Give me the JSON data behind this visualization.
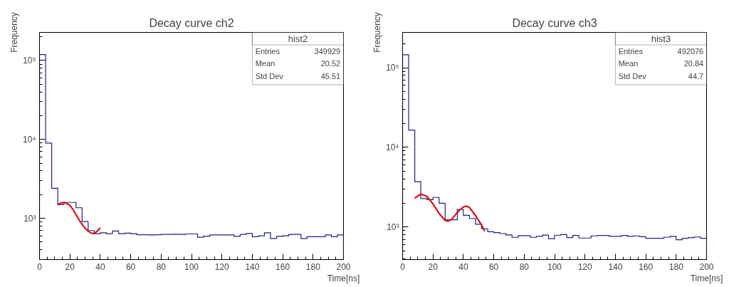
{
  "chart_data": [
    {
      "type": "histogram",
      "title": "Decay curve ch2",
      "xlabel": "Time[ns]",
      "ylabel": "Frequency",
      "bins": [
        0,
        4,
        8,
        12,
        16,
        20,
        24,
        28,
        32,
        36,
        40,
        44,
        48,
        52,
        56,
        60,
        64,
        68,
        72,
        76,
        80,
        84,
        88,
        92,
        96,
        100,
        104,
        108,
        112,
        116,
        120,
        124,
        128,
        132,
        136,
        140,
        144,
        148,
        152,
        156,
        160,
        164,
        168,
        172,
        176,
        180,
        184,
        188,
        192,
        196,
        200
      ],
      "series": [
        {
          "color": "#202080",
          "values": [
            119000,
            9000,
            2400,
            1490,
            1590,
            1590,
            1360,
            910,
            700,
            640,
            655,
            640,
            690,
            640,
            650,
            640,
            620,
            620,
            615,
            620,
            625,
            625,
            630,
            625,
            634,
            634,
            575,
            595,
            617,
            617,
            617,
            617,
            590,
            626,
            642,
            584,
            600,
            656,
            555,
            592,
            600,
            625,
            625,
            555,
            584,
            584,
            584,
            617,
            584,
            617
          ]
        },
        {
          "type": "line",
          "color": "#e01010",
          "x": [
            12,
            14,
            16,
            18,
            20,
            22,
            24,
            26,
            28,
            30,
            32,
            34,
            36,
            38,
            40
          ],
          "values": [
            1490,
            1560,
            1590,
            1540,
            1460,
            1300,
            1110,
            960,
            840,
            750,
            690,
            650,
            640,
            690,
            760
          ]
        }
      ],
      "annotations": [
        "hist2",
        "Entries",
        "349929",
        "Mean",
        "20.52",
        "Std Dev",
        "45.51"
      ],
      "xlim": [
        0,
        200
      ],
      "xticks": [
        0,
        20,
        40,
        60,
        80,
        100,
        120,
        140,
        160,
        180,
        200
      ],
      "ylim": [
        300,
        227000
      ],
      "yticks": [
        {
          "value": 1000,
          "label": "10³"
        },
        {
          "value": 10000,
          "label": "10⁴"
        },
        {
          "value": 100000,
          "label": "10⁵"
        }
      ],
      "log": "y",
      "grid": false
    },
    {
      "type": "histogram",
      "title": "Decay curve ch3",
      "xlabel": "Time[ns]",
      "ylabel": "Frequency",
      "bins": [
        0,
        4,
        8,
        12,
        16,
        20,
        24,
        28,
        32,
        36,
        40,
        44,
        48,
        52,
        56,
        60,
        64,
        68,
        72,
        76,
        80,
        84,
        88,
        92,
        96,
        100,
        104,
        108,
        112,
        116,
        120,
        124,
        128,
        132,
        136,
        140,
        144,
        148,
        152,
        156,
        160,
        164,
        168,
        172,
        176,
        180,
        184,
        188,
        192,
        196,
        200
      ],
      "series": [
        {
          "color": "#202080",
          "values": [
            145000,
            16500,
            3700,
            2270,
            2200,
            2350,
            1990,
            1230,
            1230,
            1660,
            1400,
            1280,
            1085,
            950,
            873,
            850,
            827,
            794,
            742,
            780,
            780,
            742,
            762,
            790,
            713,
            789,
            805,
            737,
            783,
            727,
            727,
            773,
            783,
            783,
            762,
            762,
            783,
            762,
            773,
            755,
            722,
            722,
            722,
            746,
            762,
            693,
            722,
            737,
            750,
            722
          ]
        },
        {
          "type": "line",
          "color": "#e01010",
          "x": [
            8,
            12,
            16,
            20,
            24,
            28,
            30,
            32,
            36,
            40,
            42,
            44,
            48,
            52,
            54
          ],
          "values": [
            2300,
            2590,
            2420,
            1950,
            1480,
            1210,
            1190,
            1230,
            1530,
            1790,
            1830,
            1760,
            1390,
            1055,
            890
          ]
        }
      ],
      "annotations": [
        "hist3",
        "Entries",
        "492076",
        "Mean",
        "20.84",
        "Std Dev",
        "44.7"
      ],
      "xlim": [
        0,
        200
      ],
      "xticks": [
        0,
        20,
        40,
        60,
        80,
        100,
        120,
        140,
        160,
        180,
        200
      ],
      "ylim": [
        390,
        277000
      ],
      "yticks": [
        {
          "value": 1000,
          "label": "10³"
        },
        {
          "value": 10000,
          "label": "10⁴"
        },
        {
          "value": 100000,
          "label": "10⁵"
        }
      ],
      "log": "y",
      "grid": false
    }
  ]
}
